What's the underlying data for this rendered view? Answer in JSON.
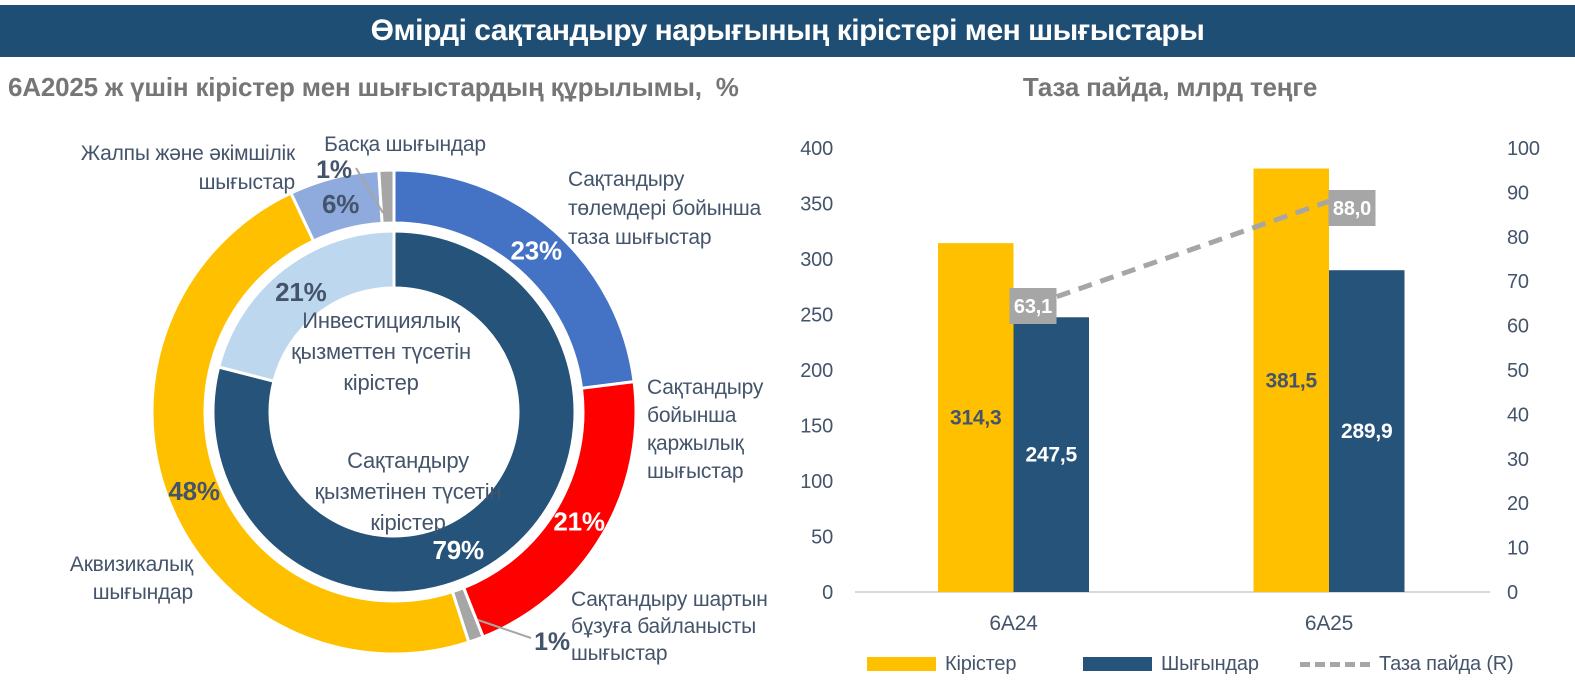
{
  "header": {
    "title": "Өмірді сақтандыру нарығының кірістері мен шығыстары"
  },
  "colors": {
    "title_bar": "#1F4E74",
    "navy": "#25537A",
    "yellow": "#FFC000",
    "blue": "#4472C4",
    "red": "#FF0000",
    "gray": "#A6A6A6",
    "periwinkle": "#8FAADC",
    "light_blue": "#BDD7EE",
    "text_dark": "#44546A",
    "text_gray": "#767676",
    "axis_line": "#D9D9D9"
  },
  "chart_data": [
    {
      "type": "pie",
      "variant": "double-ring donut",
      "title": "6А2025 ж үшін кірістер мен шығыстардың құрылымы,  %",
      "rings": [
        {
          "name": "шығыстар (outer ring)",
          "start_angle_deg": 0,
          "segments": [
            {
              "label": "Сақтандыру\nтөлемдері бойынша\nтаза шығыстар",
              "value": 23,
              "pct": "23%",
              "color": "#4472C4",
              "pct_color": "#FFFFFF"
            },
            {
              "label": "Сақтандыру\nбойынша\nқаржылық\nшығыстар",
              "value": 21,
              "pct": "21%",
              "color": "#FF0000",
              "pct_color": "#FFFFFF"
            },
            {
              "label": "Сақтандыру шартын\nбұзуға байланысты\nшығыстар",
              "value": 1,
              "pct": "1%",
              "color": "#A6A6A6",
              "pct_color": "#44546A"
            },
            {
              "label": "Аквизикалық\nшығындар",
              "value": 48,
              "pct": "48%",
              "color": "#FFC000",
              "pct_color": "#44546A"
            },
            {
              "label": "Жалпы және әкімшілік\nшығыстар",
              "value": 6,
              "pct": "6%",
              "color": "#8FAADC",
              "pct_color": "#44546A"
            },
            {
              "label": "Басқа шығындар",
              "value": 1,
              "pct": "1%",
              "color": "#A6A6A6",
              "pct_color": "#44546A"
            }
          ]
        },
        {
          "name": "кірістер (inner ring)",
          "start_angle_deg": 0,
          "segments": [
            {
              "label": "Сақтандыру\nқызметінен түсетін\nкірістер",
              "value": 79,
              "pct": "79%",
              "color": "#25537A",
              "pct_color": "#FFFFFF"
            },
            {
              "label": "Инвестициялық\nқызметтен түсетін\nкірістер",
              "value": 21,
              "pct": "21%",
              "color": "#BDD7EE",
              "pct_color": "#44546A"
            }
          ]
        }
      ]
    },
    {
      "type": "bar",
      "variant": "grouped bars + dashed line on secondary axis",
      "title": "Таза пайда, млрд теңге",
      "categories": [
        "6А24",
        "6А25"
      ],
      "series": [
        {
          "name": "Кірістер",
          "kind": "bar",
          "axis": "left",
          "color": "#FFC000",
          "values": [
            314.3,
            381.5
          ],
          "labels": [
            "314,3",
            "381,5"
          ],
          "label_color": "#44546A"
        },
        {
          "name": "Шығындар",
          "kind": "bar",
          "axis": "left",
          "color": "#25537A",
          "values": [
            247.5,
            289.9
          ],
          "labels": [
            "247,5",
            "289,9"
          ],
          "label_color": "#FFFFFF"
        },
        {
          "name": "Таза пайда (R)",
          "kind": "line",
          "axis": "right",
          "dashed": true,
          "color": "#A6A6A6",
          "values": [
            63.1,
            88.0
          ],
          "labels": [
            "63,1",
            "88,0"
          ],
          "label_bg": "#A6A6A6",
          "label_color": "#FFFFFF"
        }
      ],
      "left_axis": {
        "min": 0,
        "max": 400,
        "step": 50
      },
      "right_axis": {
        "min": 0,
        "max": 100,
        "step": 10
      },
      "grid": false,
      "legend_position": "bottom"
    }
  ]
}
